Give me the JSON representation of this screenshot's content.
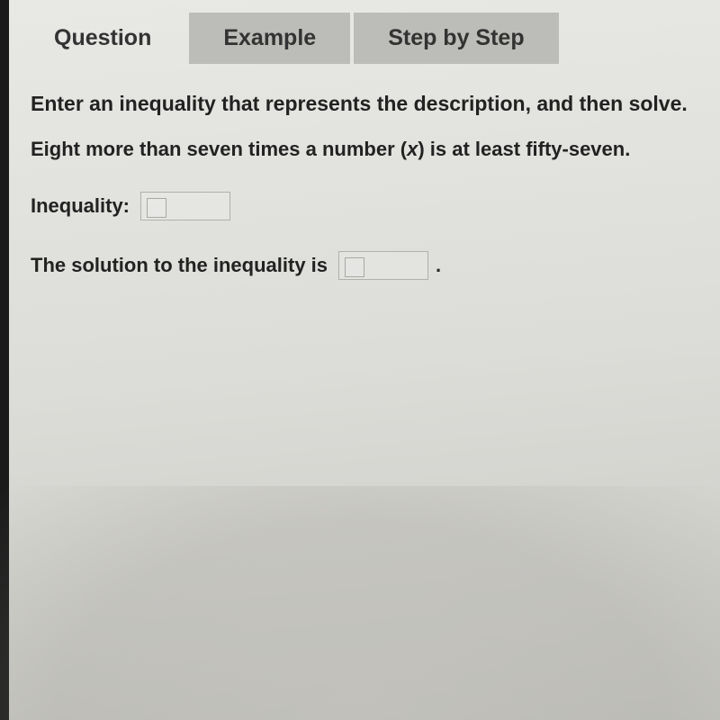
{
  "tabs": {
    "question": "Question",
    "example": "Example",
    "stepbystep": "Step by Step"
  },
  "content": {
    "instruction": "Enter an inequality that represents the description, and then solve.",
    "problem_pre": "Eight more than seven times a number (",
    "problem_var": "x",
    "problem_post": ") is at least fifty-seven.",
    "inequality_label": "Inequality:",
    "solution_label": "The solution to the inequality is",
    "period": "."
  },
  "colors": {
    "tab_inactive_bg": "#bcbcb8",
    "text": "#222222",
    "input_border": "#b0b0ac",
    "background_top": "#e8e8e5",
    "background_bottom": "#c8c8c3"
  }
}
